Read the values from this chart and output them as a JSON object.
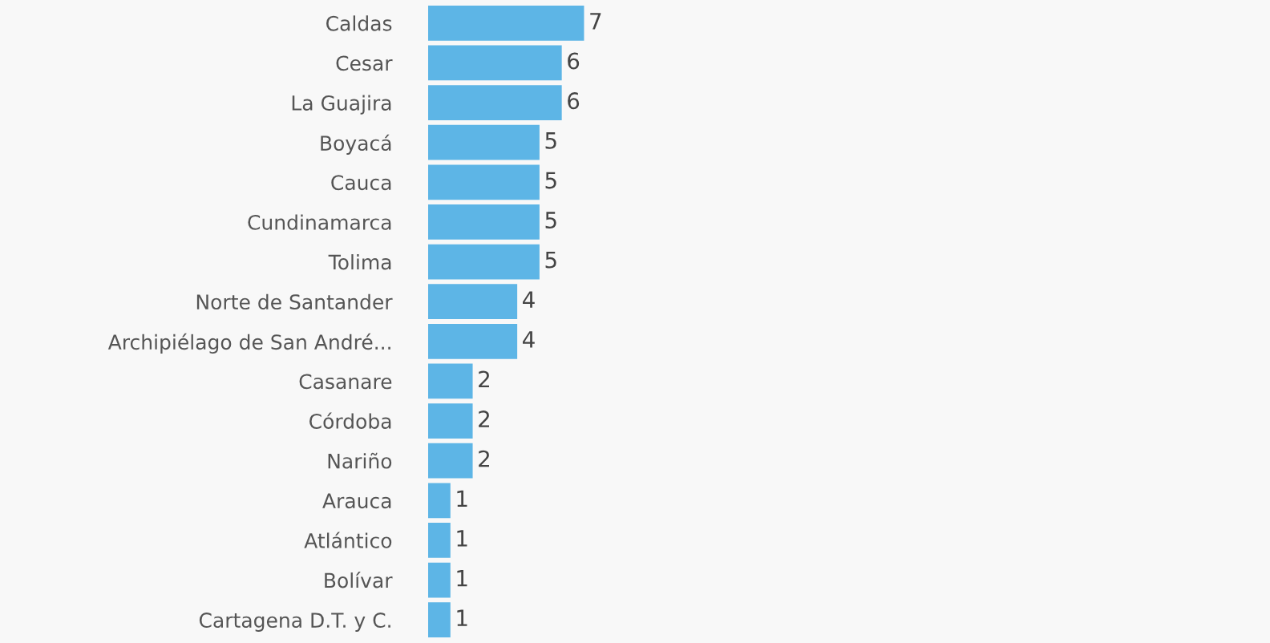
{
  "chart_data": {
    "type": "bar",
    "orientation": "horizontal",
    "data_labels": true,
    "grid": false,
    "legend": false,
    "color": "#5db5e6",
    "categories": [
      "Caldas",
      "Cesar",
      "La Guajira",
      "Boyacá",
      "Cauca",
      "Cundinamarca",
      "Tolima",
      "Norte de Santander",
      "Archipiélago de San André...",
      "Casanare",
      "Córdoba",
      "Nariño",
      "Arauca",
      "Atlántico",
      "Bolívar",
      "Cartagena D.T. y C."
    ],
    "values": [
      7,
      6,
      6,
      5,
      5,
      5,
      5,
      4,
      4,
      2,
      2,
      2,
      1,
      1,
      1,
      1
    ]
  }
}
